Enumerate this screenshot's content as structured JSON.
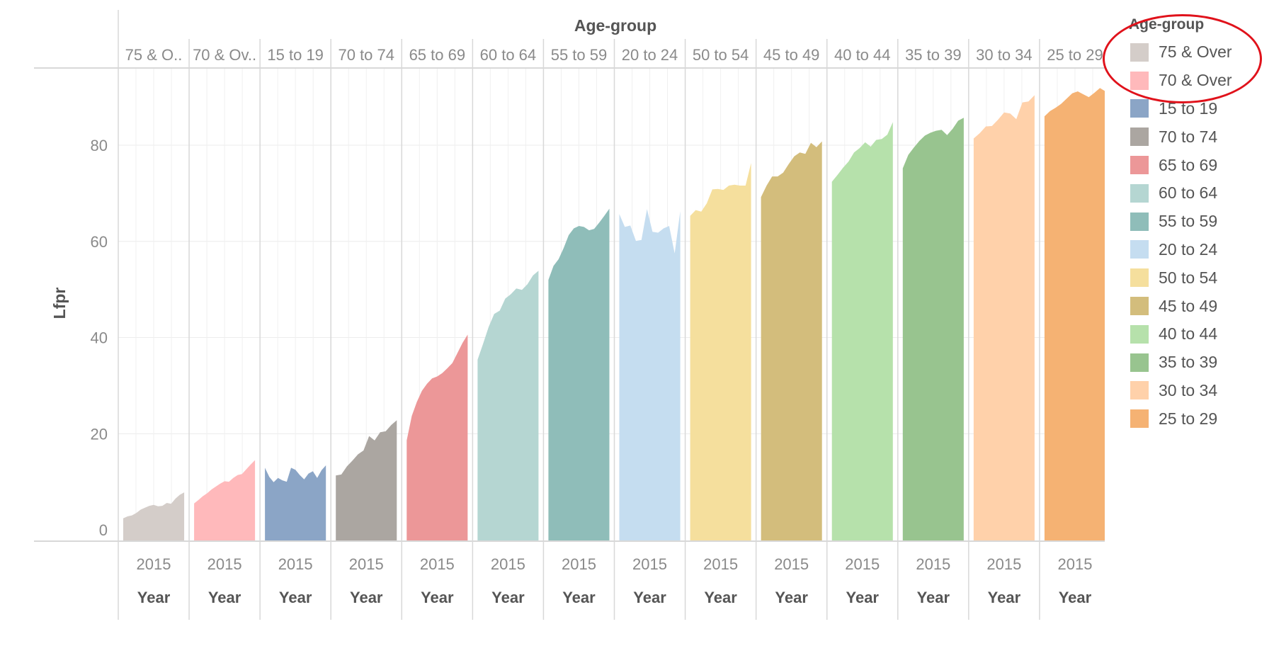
{
  "chart_data": {
    "type": "area",
    "column_header_title": "Age-group",
    "ylabel": "Lfpr",
    "ylim": [
      0,
      95
    ],
    "yticks": [
      "0",
      "20",
      "40",
      "60",
      "80"
    ],
    "xlabel": "Year",
    "grid": true,
    "legend_position": "right",
    "legend_title": "Age-group",
    "panels": [
      {
        "header": "75 & O..",
        "name": "75 & Over",
        "color": "#d4cdc9",
        "tick": "2015",
        "axis_label": "Year",
        "values": [
          2.4,
          2.8,
          3.0,
          3.5,
          4.2,
          4.6,
          5.0,
          5.2,
          4.9,
          5.0,
          5.6,
          5.4,
          6.5,
          7.3,
          7.8
        ]
      },
      {
        "header": "70 & Ov..",
        "name": "70 & Over",
        "color": "#ffb9bb",
        "tick": "2015",
        "axis_label": "Year",
        "values": [
          5.5,
          6.2,
          7.0,
          7.6,
          8.4,
          9.0,
          9.6,
          10.1,
          10.0,
          10.8,
          11.4,
          11.6,
          12.6,
          13.6,
          14.5
        ]
      },
      {
        "header": "15 to 19",
        "name": "15 to 19",
        "color": "#8ba5c6",
        "tick": "2015",
        "axis_label": "Year",
        "values": [
          12.9,
          11.0,
          9.9,
          10.8,
          10.3,
          10.0,
          12.9,
          12.5,
          11.4,
          10.5,
          11.7,
          12.2,
          10.8,
          12.4,
          13.4
        ]
      },
      {
        "header": "70 to 74",
        "name": "70 to 74",
        "color": "#aba6a1",
        "tick": "2015",
        "axis_label": "Year",
        "values": [
          11.3,
          11.5,
          13.2,
          14.4,
          15.7,
          16.5,
          19.5,
          18.6,
          20.3,
          20.5,
          21.8,
          22.8
        ]
      },
      {
        "header": "65 to 69",
        "name": "65 to 69",
        "color": "#ec9798",
        "tick": "2015",
        "axis_label": "Year",
        "values": [
          18.6,
          23.7,
          26.6,
          28.9,
          30.4,
          31.5,
          31.9,
          32.6,
          33.6,
          34.7,
          36.8,
          38.9,
          40.6
        ]
      },
      {
        "header": "60 to 64",
        "name": "60 to 64",
        "color": "#b5d6d2",
        "tick": "2015",
        "axis_label": "Year",
        "values": [
          35.4,
          38.7,
          42.2,
          44.9,
          45.6,
          48.1,
          49.0,
          50.2,
          49.9,
          51.1,
          52.9,
          53.9
        ]
      },
      {
        "header": "55 to 59",
        "name": "55 to 59",
        "color": "#8fbdb9",
        "tick": "2015",
        "axis_label": "Year",
        "values": [
          52.0,
          54.9,
          56.3,
          58.6,
          61.3,
          62.7,
          63.2,
          63.0,
          62.3,
          62.6,
          63.9,
          65.3,
          66.8
        ]
      },
      {
        "header": "20 to 24",
        "name": "20 to 24",
        "color": "#c5ddf0",
        "tick": "2015",
        "axis_label": "Year",
        "values": [
          65.7,
          63.0,
          63.3,
          60.1,
          60.3,
          66.7,
          62.0,
          61.8,
          62.7,
          63.2,
          57.5,
          66.3
        ]
      },
      {
        "header": "50 to 54",
        "name": "50 to 54",
        "color": "#f5df9d",
        "tick": "2015",
        "axis_label": "Year",
        "values": [
          65.3,
          66.5,
          66.2,
          67.9,
          70.8,
          70.9,
          70.7,
          71.6,
          71.8,
          71.6,
          71.6,
          76.3
        ]
      },
      {
        "header": "45 to 49",
        "name": "45 to 49",
        "color": "#d3bd7c",
        "tick": "2015",
        "axis_label": "Year",
        "values": [
          69.2,
          71.6,
          73.5,
          73.5,
          74.3,
          76.1,
          77.7,
          78.5,
          78.2,
          80.5,
          79.6,
          80.8
        ]
      },
      {
        "header": "40 to 44",
        "name": "40 to 44",
        "color": "#b6e1ab",
        "tick": "2015",
        "axis_label": "Year",
        "values": [
          72.4,
          73.8,
          75.3,
          76.6,
          78.5,
          79.4,
          80.6,
          79.7,
          81.1,
          81.3,
          82.2,
          84.8
        ]
      },
      {
        "header": "35 to 39",
        "name": "35 to 39",
        "color": "#98c48f",
        "tick": "2015",
        "axis_label": "Year",
        "values": [
          75.2,
          78.0,
          79.5,
          80.9,
          82.0,
          82.6,
          83.0,
          83.2,
          82.1,
          83.4,
          85.1,
          85.7
        ]
      },
      {
        "header": "30 to 34",
        "name": "30 to 34",
        "color": "#ffd1aa",
        "tick": "2015",
        "axis_label": "Year",
        "values": [
          81.4,
          82.5,
          83.9,
          84.0,
          85.3,
          86.8,
          86.6,
          85.4,
          88.9,
          89.1,
          90.4
        ]
      },
      {
        "header": "25 to 29",
        "name": "25 to 29",
        "color": "#f5b273",
        "tick": "2015",
        "axis_label": "Year",
        "values": [
          86.0,
          87.1,
          87.8,
          88.6,
          89.7,
          90.8,
          91.2,
          90.6,
          90.0,
          90.9,
          91.9,
          91.2
        ]
      }
    ]
  },
  "legend": {
    "title": "Age-group",
    "items": [
      {
        "label": "75 & Over",
        "color": "#d4cdc9"
      },
      {
        "label": "70 & Over",
        "color": "#ffb9bb"
      },
      {
        "label": "15 to 19",
        "color": "#8ba5c6"
      },
      {
        "label": "70 to 74",
        "color": "#aba6a1"
      },
      {
        "label": "65 to 69",
        "color": "#ec9798"
      },
      {
        "label": "60 to 64",
        "color": "#b5d6d2"
      },
      {
        "label": "55 to 59",
        "color": "#8fbdb9"
      },
      {
        "label": "20 to 24",
        "color": "#c5ddf0"
      },
      {
        "label": "50 to 54",
        "color": "#f5df9d"
      },
      {
        "label": "45 to 49",
        "color": "#d3bd7c"
      },
      {
        "label": "40 to 44",
        "color": "#b6e1ab"
      },
      {
        "label": "35 to 39",
        "color": "#98c48f"
      },
      {
        "label": "30 to 34",
        "color": "#ffd1aa"
      },
      {
        "label": "25 to 29",
        "color": "#f5b273"
      }
    ]
  },
  "annotation": {
    "color": "#e0121b"
  }
}
